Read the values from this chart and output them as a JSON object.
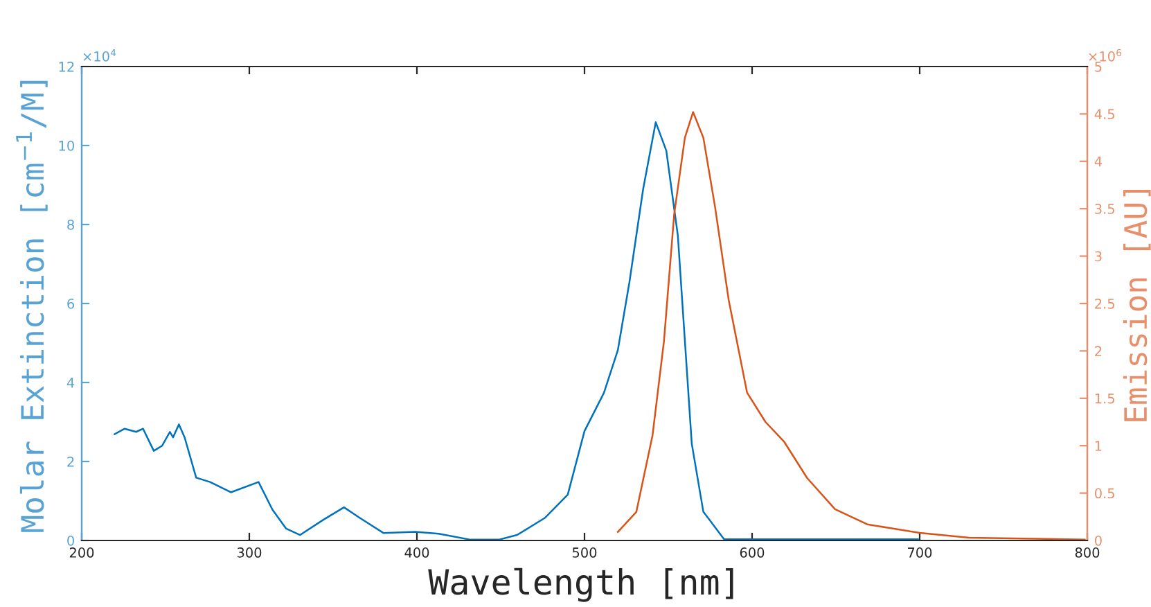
{
  "chart_data": {
    "type": "line",
    "xlabel": "Wavelength [nm]",
    "ylabel": "Molar Extinction [cm$^{−1}$/M]",
    "y2label": "Emission [AU]",
    "annotations": [
      "×10$^{4}$",
      "×10$^{6}$"
    ],
    "xlim": [
      200,
      800
    ],
    "xticks": [
      200,
      300,
      400,
      500,
      600,
      700,
      800
    ],
    "ylim": [
      0,
      12
    ],
    "yticks": [
      0,
      2,
      4,
      6,
      8,
      10,
      12
    ],
    "y2lim": [
      0,
      5
    ],
    "y2ticks": [
      0,
      0.5,
      1,
      1.5,
      2,
      2.5,
      3,
      3.5,
      4,
      4.5,
      5
    ],
    "grid": false,
    "legend": false,
    "marker": "none",
    "line_style": "solid",
    "series": [
      {
        "color": "#0072bd",
        "x": [
          219.6,
          225.6,
          232.5,
          236.6,
          243,
          248,
          252.6,
          254.5,
          258,
          261.4,
          268.3,
          276.6,
          289,
          305.5,
          313.8,
          322,
          330.3,
          344,
          356.5,
          366,
          380,
          399,
          413,
          432,
          448.8,
          459.8,
          476.3,
          490,
          500,
          511.6,
          519.9,
          526.8,
          535,
          542.5,
          548.8,
          555.7,
          564,
          570.9,
          583.3,
          699
        ],
        "values": [
          2.69,
          2.83,
          2.75,
          2.83,
          2.27,
          2.4,
          2.75,
          2.61,
          2.94,
          2.61,
          1.59,
          1.48,
          1.22,
          1.48,
          0.78,
          0.3,
          0.14,
          0.52,
          0.84,
          0.57,
          0.19,
          0.22,
          0.17,
          0.02,
          0.02,
          0.14,
          0.57,
          1.16,
          2.77,
          3.74,
          4.82,
          6.54,
          8.9,
          10.59,
          9.87,
          7.72,
          2.45,
          0.73,
          0.03,
          0.03
        ]
      },
      {
        "color": "#d95319",
        "axis": "y2",
        "x": [
          519.9,
          530.9,
          540.6,
          547.4,
          553.5,
          559.9,
          564.8,
          570.9,
          577.8,
          586,
          597,
          608,
          619.2,
          632.8,
          649.5,
          668.7,
          700,
          729.5,
          798.5
        ],
        "values": [
          0.09,
          0.3,
          1.11,
          2.1,
          3.44,
          4.25,
          4.52,
          4.25,
          3.53,
          2.54,
          1.56,
          1.25,
          1.04,
          0.66,
          0.33,
          0.17,
          0.08,
          0.03,
          0.01
        ]
      }
    ]
  }
}
